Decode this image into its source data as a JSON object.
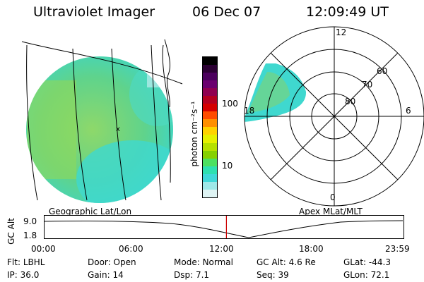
{
  "header": {
    "instrument": "Ultraviolet Imager",
    "date": "06 Dec 07",
    "time": "12:09:49 UT"
  },
  "left_panel": {
    "caption": "Geographic Lat/Lon",
    "marker": "x"
  },
  "colorbar": {
    "unit_label": "photon cm⁻²s⁻¹",
    "ticks": [
      "100",
      "10"
    ],
    "colors": [
      "#000000",
      "#2b0033",
      "#4b005d",
      "#6b006f",
      "#8f0050",
      "#b40020",
      "#d40000",
      "#ff4c00",
      "#ff8f00",
      "#ffd200",
      "#e6f000",
      "#b6e000",
      "#86d000",
      "#4ce060",
      "#2ee0b0",
      "#3fd8d8",
      "#9ee8e8",
      "#dff4f4"
    ]
  },
  "polar_panel": {
    "caption": "Apex MLat/MLT",
    "mlt_labels": [
      "12",
      "18",
      "6",
      "0"
    ],
    "mlat_labels": [
      "60",
      "70",
      "80"
    ]
  },
  "altitude_strip": {
    "ylabel": "GC Alt",
    "y_ticks": [
      "9.0",
      "1.8"
    ],
    "x_ticks": [
      "00:00",
      "06:00",
      "12:00",
      "18:00",
      "23:59"
    ],
    "current_time_hours": 12.16,
    "cursor_color": "#cc0000"
  },
  "info": {
    "flt_label": "Flt:",
    "flt_value": "LBHL",
    "door_label": "Door:",
    "door_value": "Open",
    "mode_label": "Mode:",
    "mode_value": "Normal",
    "gcalt_label": "GC Alt:",
    "gcalt_value": "4.6 Re",
    "glat_label": "GLat:",
    "glat_value": "-44.3",
    "ip_label": "IP:",
    "ip_value": "36.0",
    "gain_label": "Gain:",
    "gain_value": "14",
    "dsp_label": "Dsp:",
    "dsp_value": "7.1",
    "seq_label": "Seq:",
    "seq_value": "39",
    "glon_label": "GLon:",
    "glon_value": "72.1"
  }
}
